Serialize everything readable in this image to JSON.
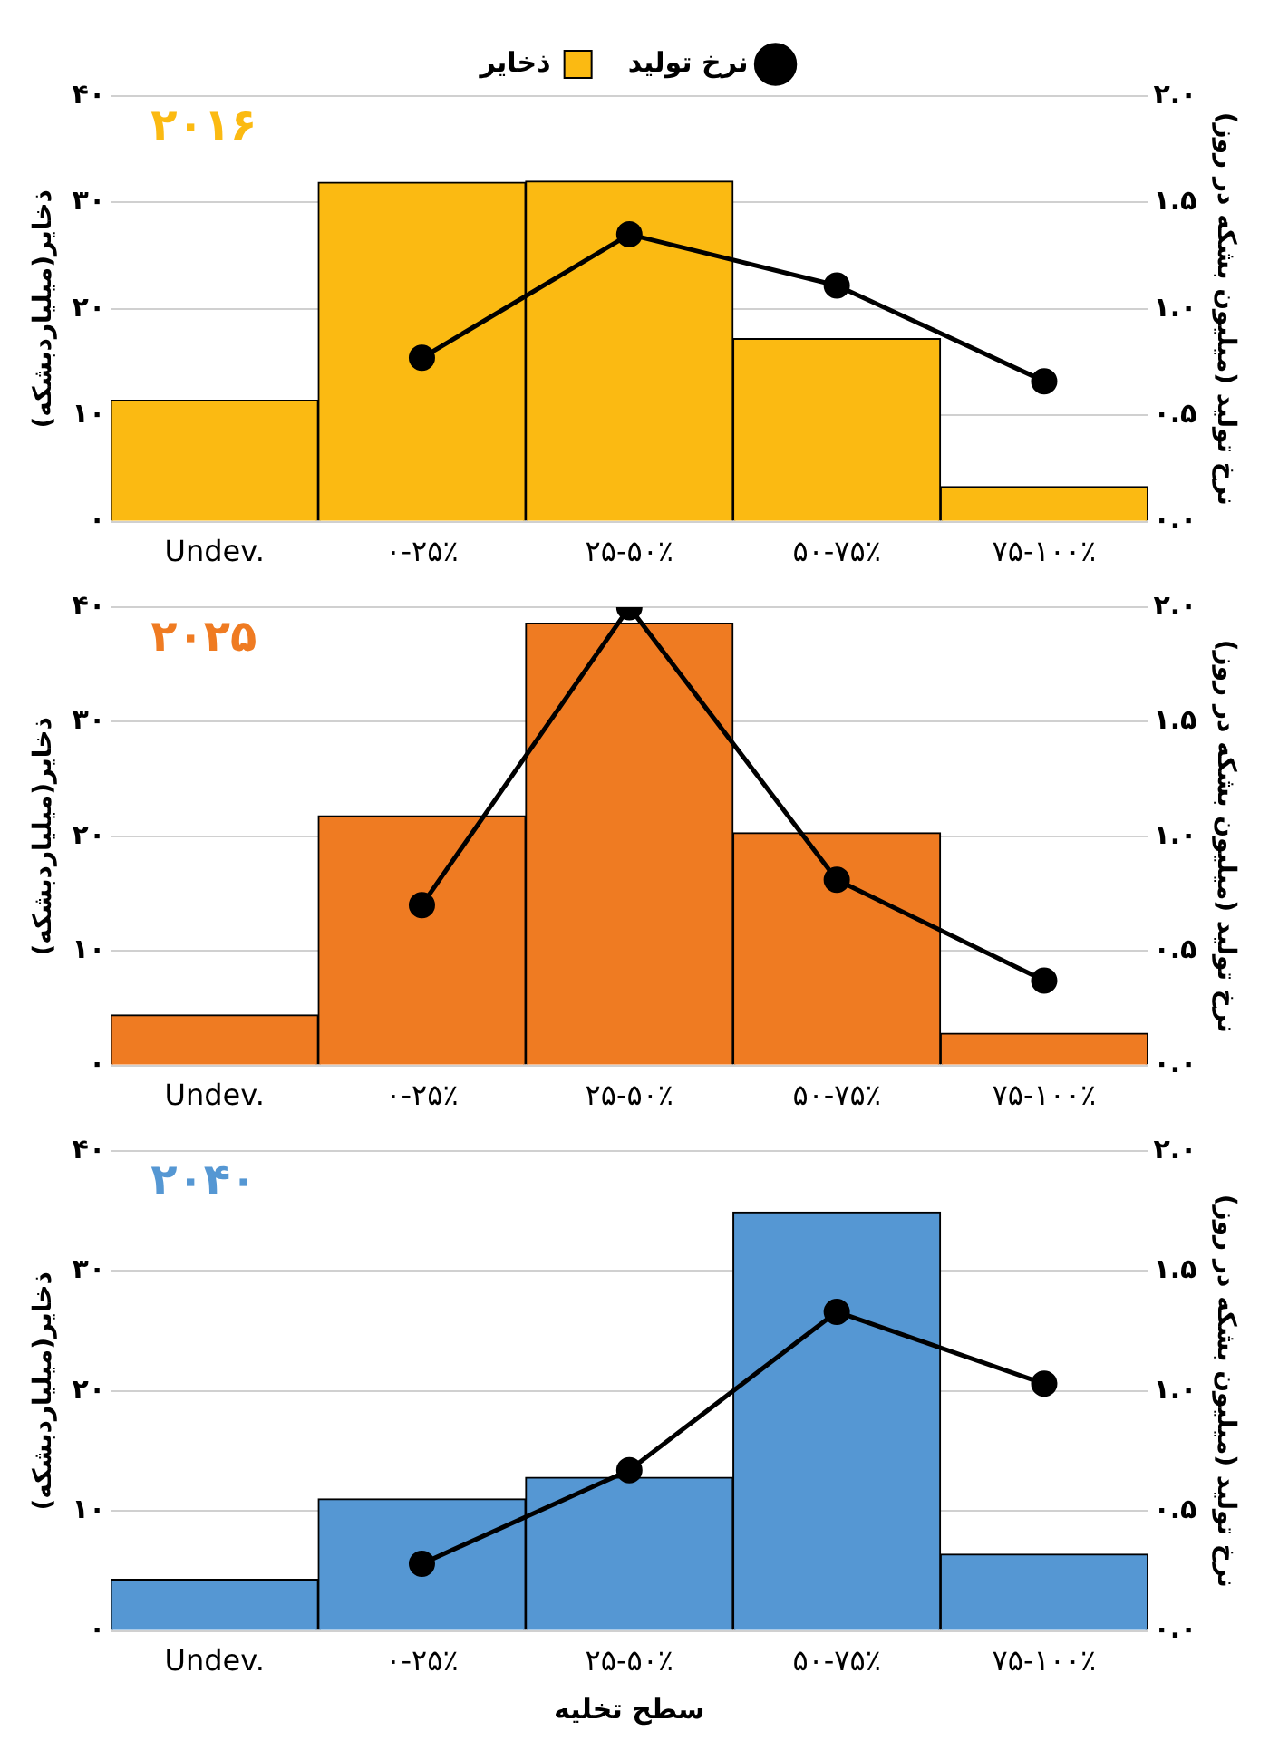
{
  "chart_data": [
    {
      "type": "bar",
      "title": "۲۰۱۶",
      "categories": [
        "Undev.",
        "۰-۲۵٪",
        "۲۵-۵۰٪",
        "۵۰-۷۵٪",
        "۷۵-۱۰۰٪"
      ],
      "ylabel": "ذخایر(میلیاردبشکه)",
      "y2label": "نرخ تولید (میلیون بشکه در روز)",
      "ylim": [
        0,
        40
      ],
      "yticks": [
        {
          "value": 0,
          "label": "۰"
        },
        {
          "value": 10,
          "label": "۱۰"
        },
        {
          "value": 20,
          "label": "۲۰"
        },
        {
          "value": 30,
          "label": "۳۰"
        },
        {
          "value": 40,
          "label": "۴۰"
        }
      ],
      "y2lim": [
        0,
        2
      ],
      "y2ticks": [
        {
          "value": 0,
          "label": "۰.۰"
        },
        {
          "value": 0.5,
          "label": "۰.۵"
        },
        {
          "value": 1,
          "label": "۱.۰"
        },
        {
          "value": 1.5,
          "label": "۱.۵"
        },
        {
          "value": 2,
          "label": "۲.۰"
        }
      ],
      "grid": "y",
      "legend": "top",
      "marker": "circle",
      "series": [
        {
          "name": "ذخایر",
          "color": "#fbba12",
          "values": [
            11.4,
            31.9,
            32,
            17.2,
            3.3
          ]
        },
        {
          "name": "نرخ تولید",
          "type": "line",
          "axis": "y2",
          "color": "#000000",
          "values": [
            null,
            0.77,
            1.35,
            1.11,
            0.66
          ]
        }
      ]
    },
    {
      "type": "bar",
      "title": "۲۰۲۵",
      "categories": [
        "Undev.",
        "۰-۲۵٪",
        "۲۵-۵۰٪",
        "۵۰-۷۵٪",
        "۷۵-۱۰۰٪"
      ],
      "ylabel": "ذخایر(میلیاردبشکه)",
      "y2label": "نرخ تولید (میلیون بشکه در روز)",
      "ylim": [
        0,
        40
      ],
      "yticks": [
        {
          "value": 0,
          "label": "۰"
        },
        {
          "value": 10,
          "label": "۱۰"
        },
        {
          "value": 20,
          "label": "۲۰"
        },
        {
          "value": 30,
          "label": "۳۰"
        },
        {
          "value": 40,
          "label": "۴۰"
        }
      ],
      "y2lim": [
        0,
        2
      ],
      "y2ticks": [
        {
          "value": 0,
          "label": "۰.۰"
        },
        {
          "value": 0.5,
          "label": "۰.۵"
        },
        {
          "value": 1,
          "label": "۱.۰"
        },
        {
          "value": 1.5,
          "label": "۱.۵"
        },
        {
          "value": 2,
          "label": "۲.۰"
        }
      ],
      "grid": "y",
      "marker": "circle",
      "series": [
        {
          "color": "#ef7b22",
          "values": [
            4.4,
            21.8,
            38.6,
            20.3,
            2.8
          ]
        },
        {
          "type": "line",
          "axis": "y2",
          "color": "#000000",
          "values": [
            null,
            0.7,
            2.0,
            0.81,
            0.37
          ]
        }
      ]
    },
    {
      "type": "bar",
      "title": "۲۰۴۰",
      "categories": [
        "Undev.",
        "۰-۲۵٪",
        "۲۵-۵۰٪",
        "۵۰-۷۵٪",
        "۷۵-۱۰۰٪"
      ],
      "xlabel": "سطح تخلیه",
      "ylabel": "ذخایر(میلیاردبشکه)",
      "y2label": "نرخ تولید (میلیون بشکه در روز)",
      "ylim": [
        0,
        40
      ],
      "yticks": [
        {
          "value": 0,
          "label": "۰"
        },
        {
          "value": 10,
          "label": "۱۰"
        },
        {
          "value": 20,
          "label": "۲۰"
        },
        {
          "value": 30,
          "label": "۳۰"
        },
        {
          "value": 40,
          "label": "۴۰"
        }
      ],
      "y2lim": [
        0,
        2
      ],
      "y2ticks": [
        {
          "value": 0,
          "label": "۰.۰"
        },
        {
          "value": 0.5,
          "label": "۰.۵"
        },
        {
          "value": 1,
          "label": "۱.۰"
        },
        {
          "value": 1.5,
          "label": "۱.۵"
        },
        {
          "value": 2,
          "label": "۲.۰"
        }
      ],
      "grid": "y",
      "marker": "circle",
      "series": [
        {
          "color": "#5597d3",
          "values": [
            4.3,
            11.0,
            12.8,
            34.9,
            6.4
          ]
        },
        {
          "type": "line",
          "axis": "y2",
          "color": "#000000",
          "values": [
            null,
            0.28,
            0.67,
            1.33,
            1.03
          ]
        }
      ]
    }
  ]
}
